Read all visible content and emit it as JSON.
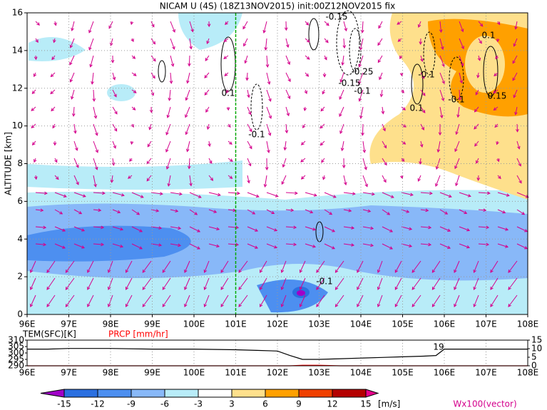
{
  "chart_data": [
    {
      "type": "contour",
      "title": "NICAM U (4S) (18Z13NOV2015) init:00Z12NOV2015 fix",
      "y_label": "ALTITUDE [km]",
      "xlim": [
        96,
        108
      ],
      "xticks": [
        {
          "value": 96,
          "label": "96E"
        },
        {
          "value": 97,
          "label": "97E"
        },
        {
          "value": 98,
          "label": "98E"
        },
        {
          "value": 99,
          "label": "99E"
        },
        {
          "value": 100,
          "label": "100E"
        },
        {
          "value": 101,
          "label": "101E"
        },
        {
          "value": 102,
          "label": "102E"
        },
        {
          "value": 103,
          "label": "103E"
        },
        {
          "value": 104,
          "label": "104E"
        },
        {
          "value": 105,
          "label": "105E"
        },
        {
          "value": 106,
          "label": "106E"
        },
        {
          "value": 107,
          "label": "107E"
        },
        {
          "value": 108,
          "label": "108E"
        }
      ],
      "ylim": [
        0,
        16
      ],
      "yticks": [
        0,
        2,
        4,
        6,
        8,
        10,
        12,
        14,
        16
      ],
      "grid": true,
      "marker_x": 101,
      "marker_color": "#00aa00",
      "vector_color": "#d4008c",
      "contour_labels": [
        -0.15,
        0.1,
        -0.1,
        -0.25,
        -0.15,
        -0.1,
        0.1,
        0.1,
        -0.1,
        0.15,
        -0.1,
        -0.1
      ]
    },
    {
      "type": "line",
      "y_label": "TEM(SFC)[K]",
      "y2_label": "PRCP [mm/hr]",
      "xlim": [
        96,
        108
      ],
      "xticks": [
        {
          "value": 96,
          "label": "96E"
        },
        {
          "value": 97,
          "label": "97E"
        },
        {
          "value": 98,
          "label": "98E"
        },
        {
          "value": 99,
          "label": "99E"
        },
        {
          "value": 100,
          "label": "100E"
        },
        {
          "value": 101,
          "label": "101E"
        },
        {
          "value": 102,
          "label": "102E"
        },
        {
          "value": 103,
          "label": "103E"
        },
        {
          "value": 104,
          "label": "104E"
        },
        {
          "value": 105,
          "label": "105E"
        },
        {
          "value": 106,
          "label": "106E"
        },
        {
          "value": 107,
          "label": "107E"
        },
        {
          "value": 108,
          "label": "108E"
        }
      ],
      "ylim": [
        290,
        310
      ],
      "yticks": [
        290,
        295,
        300,
        305,
        310
      ],
      "y2lim": [
        0,
        15
      ],
      "y2ticks": [
        0,
        5,
        10,
        15
      ],
      "x": [
        96,
        96.5,
        97,
        98,
        99,
        100,
        101,
        101.5,
        102,
        102.3,
        102.6,
        103,
        103.5,
        104,
        104.5,
        105,
        105.5,
        105.8,
        106,
        106.5,
        107,
        108
      ],
      "series": [
        {
          "name": "TEM",
          "color": "#000000",
          "values": [
            303,
            303,
            303.5,
            303.5,
            303,
            303,
            302.5,
            302,
            301.5,
            298,
            295,
            295,
            295.5,
            296,
            296.5,
            297,
            297.5,
            298,
            303,
            303,
            303,
            303
          ]
        },
        {
          "name": "PRCP",
          "color": "#ff0000",
          "axis": "y2",
          "values": [
            0,
            0,
            0,
            0,
            0,
            0,
            0,
            0,
            0,
            0,
            0.3,
            0.3,
            0,
            0,
            0,
            0,
            0,
            0,
            0,
            0,
            0,
            0
          ]
        }
      ],
      "max_label": 19
    },
    {
      "type": "colorbar",
      "unit_label": "[m/s]",
      "vector_label": "Wx100(vector)",
      "levels": [
        -15,
        -12,
        -9,
        -6,
        -3,
        3,
        6,
        9,
        12,
        15
      ],
      "colors": [
        "#a000c8",
        "#2a6fe0",
        "#4d8ff0",
        "#88b8f8",
        "#b8ecf8",
        "#ffffff",
        "#fee08c",
        "#ffa000",
        "#f04000",
        "#b40000",
        "#e8008c"
      ]
    }
  ]
}
